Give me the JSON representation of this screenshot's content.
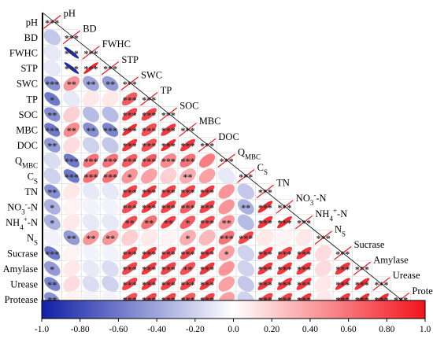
{
  "chart_data": {
    "type": "heatmap",
    "subtype": "lower-triangle correlation ellipse matrix",
    "variables": [
      {
        "name": "pH"
      },
      {
        "name": "BD"
      },
      {
        "name": "FWHC"
      },
      {
        "name": "STP"
      },
      {
        "name": "SWC"
      },
      {
        "name": "TP"
      },
      {
        "name": "SOC"
      },
      {
        "name": "MBC"
      },
      {
        "name": "DOC"
      },
      {
        "name": "Q",
        "sub": "MBC"
      },
      {
        "name": "C",
        "sub": "S"
      },
      {
        "name": "TN"
      },
      {
        "name": "NO",
        "sub": "3",
        "sup": "-",
        "tail": "-N"
      },
      {
        "name": "NH",
        "sub": "4",
        "sup": "+",
        "tail": "-N"
      },
      {
        "name": "N",
        "sub": "S"
      },
      {
        "name": "Sucrase"
      },
      {
        "name": "Amylase"
      },
      {
        "name": "Urease"
      },
      {
        "name": "Protease"
      }
    ],
    "values": [
      [
        1.0
      ],
      [
        -0.25,
        1.0
      ],
      [
        -0.1,
        -0.95,
        1.0
      ],
      [
        -0.1,
        -0.95,
        0.95,
        1.0
      ],
      [
        -0.5,
        0.45,
        -0.4,
        -0.45,
        1.0
      ],
      [
        -0.6,
        -0.1,
        0.1,
        0.1,
        0.7,
        1.0
      ],
      [
        -0.5,
        0.2,
        -0.3,
        -0.3,
        0.8,
        0.8,
        1.0
      ],
      [
        -0.6,
        0.5,
        -0.5,
        -0.55,
        0.9,
        0.75,
        0.85,
        1.0
      ],
      [
        -0.45,
        0.15,
        -0.2,
        -0.25,
        0.85,
        0.75,
        0.9,
        0.85,
        1.0
      ],
      [
        -0.15,
        -0.6,
        0.6,
        0.6,
        0.7,
        0.7,
        0.5,
        0.6,
        0.55,
        1.0
      ],
      [
        -0.2,
        -0.6,
        0.6,
        0.6,
        0.45,
        0.4,
        0.2,
        0.35,
        0.4,
        -0.1,
        1.0
      ],
      [
        -0.5,
        0.1,
        -0.1,
        -0.1,
        0.8,
        0.85,
        0.8,
        0.8,
        0.85,
        0.45,
        -0.25,
        1.0
      ],
      [
        -0.35,
        0.05,
        -0.05,
        -0.05,
        0.75,
        0.85,
        0.8,
        0.7,
        0.8,
        0.45,
        -0.35,
        0.9,
        1.0
      ],
      [
        -0.35,
        0.1,
        -0.1,
        -0.1,
        0.75,
        0.6,
        0.8,
        0.7,
        0.75,
        0.45,
        -0.3,
        0.85,
        0.9,
        1.0
      ],
      [
        -0.05,
        -0.45,
        0.45,
        0.45,
        0.2,
        0.1,
        0.05,
        0.35,
        0.3,
        0.6,
        0.8,
        0.1,
        0.05,
        0.1,
        1.0
      ],
      [
        -0.6,
        0.05,
        -0.05,
        -0.05,
        0.8,
        0.85,
        0.8,
        0.8,
        0.85,
        0.4,
        -0.2,
        0.85,
        0.8,
        0.85,
        0.15,
        1.0
      ],
      [
        -0.45,
        0.1,
        -0.1,
        -0.15,
        0.8,
        0.85,
        0.8,
        0.75,
        0.85,
        0.45,
        -0.2,
        0.85,
        0.85,
        0.85,
        0.15,
        0.85,
        1.0
      ],
      [
        -0.55,
        0.15,
        -0.15,
        -0.2,
        0.8,
        0.85,
        0.8,
        0.8,
        0.85,
        0.4,
        -0.25,
        0.85,
        0.85,
        0.85,
        0.1,
        0.9,
        0.9,
        1.0
      ],
      [
        -0.5,
        0.05,
        -0.05,
        -0.05,
        0.75,
        0.8,
        0.8,
        0.7,
        0.8,
        0.4,
        -0.2,
        0.8,
        0.8,
        0.85,
        0.1,
        0.85,
        0.9,
        0.9,
        1.0
      ]
    ],
    "significance": [
      [
        "***"
      ],
      [
        "",
        "***"
      ],
      [
        "",
        "***",
        "***"
      ],
      [
        "",
        "***",
        "***",
        "***"
      ],
      [
        "***",
        "**",
        "**",
        "**",
        "***"
      ],
      [
        "*",
        "",
        "",
        "",
        "***",
        "***"
      ],
      [
        "**",
        "",
        "",
        "",
        "***",
        "***",
        "***"
      ],
      [
        "***",
        "**",
        "**",
        "***",
        "***",
        "***",
        "***",
        "***"
      ],
      [
        "**",
        "",
        "",
        "",
        "***",
        "***",
        "***",
        "***",
        "***"
      ],
      [
        "",
        "***",
        "***",
        "***",
        "***",
        "***",
        "***",
        "***",
        "",
        "***"
      ],
      [
        "",
        "***",
        "***",
        "***",
        "*",
        "",
        "",
        "**",
        "",
        "",
        "***"
      ],
      [
        "**",
        "",
        "",
        "",
        "***",
        "***",
        "***",
        "***",
        "***",
        "",
        "",
        "***"
      ],
      [
        "*",
        "",
        "",
        "",
        "***",
        "***",
        "***",
        "***",
        "***",
        "",
        "**",
        "***",
        "***"
      ],
      [
        "*",
        "",
        "",
        "",
        "**",
        "**",
        "**",
        "*",
        "***",
        "**",
        "",
        "***",
        "***",
        "***"
      ],
      [
        "",
        "**",
        "**",
        "**",
        "",
        "",
        "",
        "*",
        "",
        "***",
        "***",
        "",
        "",
        "",
        "***"
      ],
      [
        "***",
        "",
        "",
        "",
        "***",
        "***",
        "***",
        "***",
        "***",
        "*",
        "",
        "***",
        "***",
        "***",
        "",
        "***"
      ],
      [
        "*",
        "",
        "",
        "",
        "***",
        "***",
        "***",
        "**",
        "***",
        "",
        "",
        "***",
        "***",
        "***",
        "",
        "***",
        "***"
      ],
      [
        "**",
        "",
        "",
        "",
        "***",
        "***",
        "***",
        "***",
        "***",
        "",
        "",
        "***",
        "***",
        "***",
        "",
        "***",
        "***",
        "***"
      ],
      [
        "**",
        "",
        "",
        "",
        "***",
        "***",
        "***",
        "***",
        "***",
        "",
        "",
        "***",
        "***",
        "***",
        "",
        "***",
        "***",
        "***",
        "***"
      ]
    ],
    "colorbar": {
      "ticks": [
        "-1.0",
        "-0.80",
        "-0.60",
        "-0.40",
        "-0.20",
        "0.0",
        "0.20",
        "0.40",
        "0.60",
        "0.80",
        "1.0"
      ],
      "range": [
        -1,
        1
      ],
      "colors": {
        "negative": "#0f1fa6",
        "mid": "#ffffff",
        "positive": "#f2141c"
      }
    }
  }
}
